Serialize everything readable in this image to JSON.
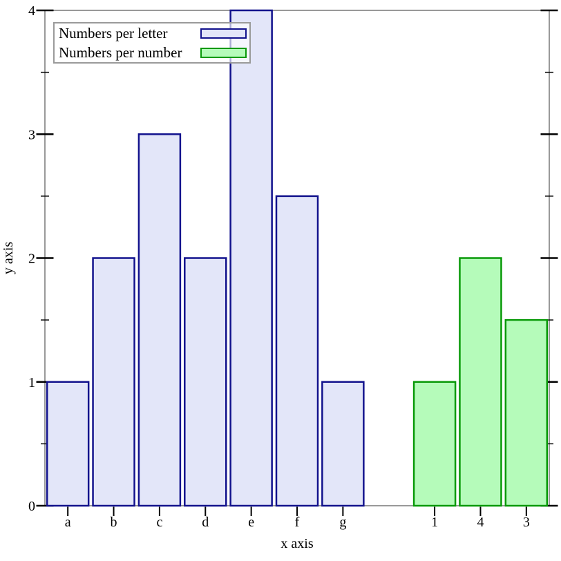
{
  "chart_data": {
    "type": "bar",
    "title": "",
    "xlabel": "x axis",
    "ylabel": "y axis",
    "ylim": [
      0,
      4
    ],
    "y_major_ticks": [
      "0",
      "1",
      "2",
      "3",
      "4"
    ],
    "y_minor_ticks": [
      0.5,
      1.5,
      2.5,
      3.5
    ],
    "grid": false,
    "legend_position": "top-left",
    "total_slots": 11,
    "series": [
      {
        "name": "Numbers per letter",
        "fill": "#e3e6f9",
        "stroke": "#12128d"
      },
      {
        "name": "Numbers per number",
        "fill": "#b5fbba",
        "stroke": "#089908"
      }
    ],
    "bars": [
      {
        "label": "a",
        "value": 1,
        "slot": 0,
        "series": 0
      },
      {
        "label": "b",
        "value": 2,
        "slot": 1,
        "series": 0
      },
      {
        "label": "c",
        "value": 3,
        "slot": 2,
        "series": 0
      },
      {
        "label": "d",
        "value": 2,
        "slot": 3,
        "series": 0
      },
      {
        "label": "e",
        "value": 4,
        "slot": 4,
        "series": 0
      },
      {
        "label": "f",
        "value": 2.5,
        "slot": 5,
        "series": 0
      },
      {
        "label": "g",
        "value": 1,
        "slot": 6,
        "series": 0
      },
      {
        "label": "1",
        "value": 1,
        "slot": 8,
        "series": 1
      },
      {
        "label": "4",
        "value": 2,
        "slot": 9,
        "series": 1
      },
      {
        "label": "3",
        "value": 1.5,
        "slot": 10,
        "series": 1
      }
    ]
  },
  "legend": {
    "entries": [
      {
        "label": "Numbers per letter",
        "series": 0
      },
      {
        "label": "Numbers per number",
        "series": 1
      }
    ]
  },
  "colors": {
    "background": "#ffffff",
    "frame": "#999999",
    "tick": "#000000",
    "text": "#000000",
    "legend_border": "#9a9a9a",
    "legend_bg": "rgba(255,255,255,0.65)"
  }
}
